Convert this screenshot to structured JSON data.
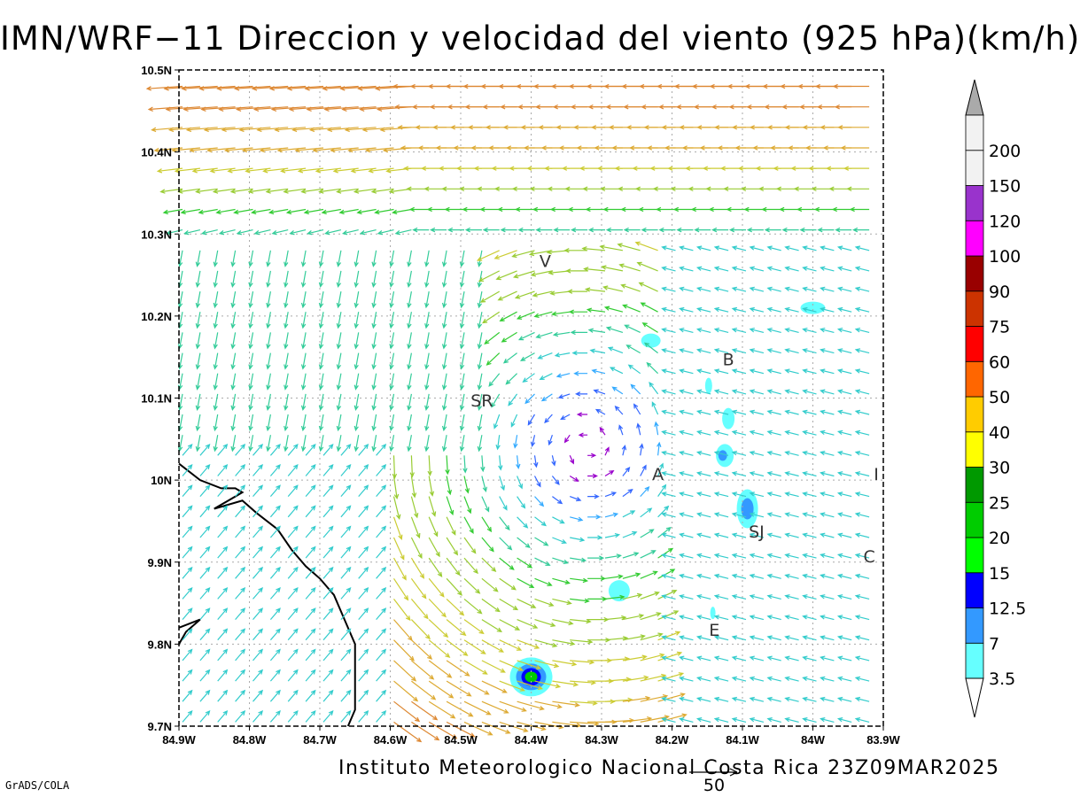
{
  "title": "IMN/WRF−11 Direccion y velocidad del viento (925 hPa)(km/h)",
  "footer": "Instituto Meteorologico Nacional Costa Rica  23Z09MAR2025",
  "software": "GrADS/COLA",
  "reference_vector_label": "50",
  "x_ticks": [
    "84.9W",
    "84.8W",
    "84.7W",
    "84.6W",
    "84.5W",
    "84.4W",
    "84.3W",
    "84.2W",
    "84.1W",
    "84W",
    "83.9W"
  ],
  "y_ticks": [
    "10.5N",
    "10.4N",
    "10.3N",
    "10.2N",
    "10.1N",
    "10N",
    "9.9N",
    "9.8N",
    "9.7N"
  ],
  "cities": [
    {
      "label": "V",
      "lon": -84.38,
      "lat": 10.26
    },
    {
      "label": "SR",
      "lon": -84.47,
      "lat": 10.09
    },
    {
      "label": "B",
      "lon": -84.12,
      "lat": 10.14
    },
    {
      "label": "A",
      "lon": -84.22,
      "lat": 10.0
    },
    {
      "label": "SJ",
      "lon": -84.08,
      "lat": 9.93
    },
    {
      "label": "C",
      "lon": -83.92,
      "lat": 9.9
    },
    {
      "label": "E",
      "lon": -84.14,
      "lat": 9.81
    },
    {
      "label": "I",
      "lon": -83.91,
      "lat": 10.0
    }
  ],
  "colorbar": {
    "levels": [
      "3.5",
      "7",
      "12.5",
      "15",
      "20",
      "25",
      "30",
      "40",
      "50",
      "60",
      "75",
      "90",
      "100",
      "120",
      "150",
      "200"
    ],
    "colors": [
      "#66ffff",
      "#3399ff",
      "#0000ff",
      "#00ff00",
      "#00cc00",
      "#009900",
      "#ffff00",
      "#ffcc00",
      "#ff6600",
      "#ff0000",
      "#cc3300",
      "#990000",
      "#ff00ff",
      "#9933cc",
      "#f2f2f2",
      "#aaaaaa"
    ]
  },
  "map_extent": {
    "lon_min": -84.9,
    "lon_max": -83.9,
    "lat_min": 9.7,
    "lat_max": 10.5
  }
}
